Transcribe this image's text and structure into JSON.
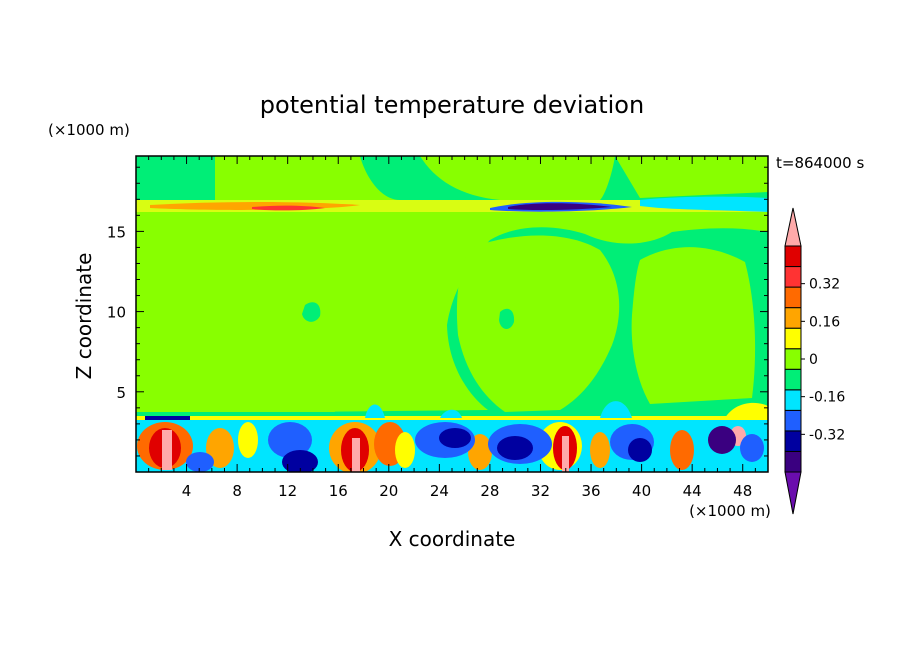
{
  "chart_data": {
    "type": "heatmap",
    "title": "potential temperature deviation",
    "time_label": "t=864000 s",
    "xlabel": "X coordinate",
    "ylabel": "Z coordinate",
    "x_unit": "(×1000 m)",
    "y_unit": "(×1000 m)",
    "xlim": [
      0,
      50
    ],
    "ylim": [
      0,
      19.7
    ],
    "xticks": [
      4,
      8,
      12,
      16,
      20,
      24,
      28,
      32,
      36,
      40,
      44,
      48
    ],
    "yticks": [
      5,
      10,
      15
    ],
    "colorbar": {
      "min": -0.48,
      "max": 0.48,
      "step": 0.08,
      "labels": [
        "0.32",
        "0.16",
        "0",
        "-0.16",
        "-0.32"
      ],
      "label_values": [
        0.32,
        0.16,
        0,
        -0.16,
        -0.32
      ],
      "extend": "both",
      "colors": [
        "#6a0dad",
        "#3a0080",
        "#0000a0",
        "#1f5fff",
        "#00e5ff",
        "#00ee77",
        "#88ff00",
        "#ffff00",
        "#ffa500",
        "#ff6a00",
        "#ff3333",
        "#e00000",
        "#ffaaaa"
      ]
    }
  }
}
